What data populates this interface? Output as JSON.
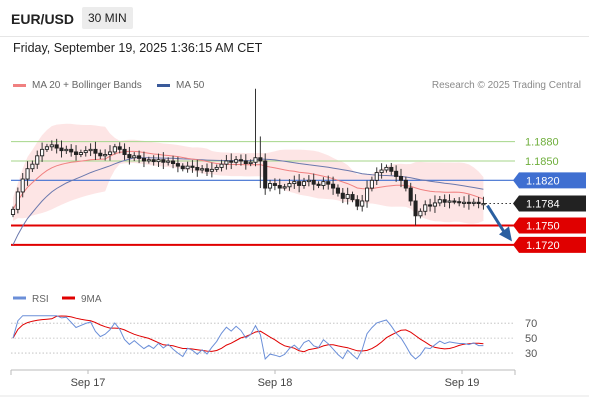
{
  "header": {
    "symbol": "EUR/USD",
    "timeframe": "30 MIN",
    "datetime": "Friday, September 19, 2025 1:36:15 AM CET"
  },
  "legend": {
    "ma20_label": "MA 20 + Bollinger Bands",
    "ma50_label": "MA 50",
    "rsi_label": "RSI",
    "rsi_ma_label": "9MA",
    "credit": "Research © 2025 Trading Central"
  },
  "colors": {
    "ma20": "#f08080",
    "bollinger_fill": "#fde0e0",
    "ma50": "#6a78ad",
    "resistance": "#a4d68a",
    "pivot": "#3f6fd1",
    "support": "#e00000",
    "current_price": "#222222",
    "forecast_arrow": "#2a5fa0",
    "rsi": "#6b8fd8",
    "rsi_ma": "#e00000"
  },
  "chart_data": [
    {
      "type": "candlestick",
      "price_range": [
        1.165,
        1.196
      ],
      "x_ticks": [
        "Sep 17",
        "Sep 18",
        "Sep 19"
      ],
      "current_price": 1.1784,
      "levels": [
        {
          "value": 1.188,
          "label": "1.1880",
          "kind": "resistance"
        },
        {
          "value": 1.185,
          "label": "1.1850",
          "kind": "resistance"
        },
        {
          "value": 1.182,
          "label": "1.1820",
          "kind": "pivot"
        },
        {
          "value": 1.175,
          "label": "1.1750",
          "kind": "support"
        },
        {
          "value": 1.172,
          "label": "1.1720",
          "kind": "support"
        }
      ],
      "forecast": {
        "from": 1.1784,
        "to": 1.173
      },
      "close_series": [
        1.1775,
        1.1802,
        1.1822,
        1.1838,
        1.1845,
        1.1858,
        1.1868,
        1.1872,
        1.1875,
        1.187,
        1.1866,
        1.1868,
        1.1864,
        1.186,
        1.1863,
        1.1866,
        1.1868,
        1.1862,
        1.1858,
        1.186,
        1.1864,
        1.1872,
        1.1868,
        1.186,
        1.1855,
        1.1858,
        1.1854,
        1.185,
        1.1852,
        1.1849,
        1.1852,
        1.1848,
        1.185,
        1.1846,
        1.1842,
        1.1838,
        1.1842,
        1.184,
        1.1836,
        1.1838,
        1.1834,
        1.1837,
        1.184,
        1.1845,
        1.185,
        1.1848,
        1.1852,
        1.185,
        1.1846,
        1.1848,
        1.1855,
        1.185,
        1.1808,
        1.1815,
        1.1812,
        1.1808,
        1.181,
        1.1815,
        1.1818,
        1.1812,
        1.1818,
        1.182,
        1.1814,
        1.1812,
        1.1818,
        1.1814,
        1.1808,
        1.18,
        1.1792,
        1.1798,
        1.179,
        1.178,
        1.1788,
        1.1808,
        1.182,
        1.1832,
        1.1836,
        1.184,
        1.1834,
        1.1826,
        1.182,
        1.1808,
        1.1788,
        1.1765,
        1.1772,
        1.1782,
        1.178,
        1.1785,
        1.179,
        1.1786,
        1.1788,
        1.1787,
        1.1786,
        1.1786,
        1.1785,
        1.1786,
        1.1784,
        1.1784
      ],
      "events": [
        {
          "index": 50,
          "high": 1.1962,
          "low": 1.1846
        },
        {
          "index": 51,
          "high": 1.1888,
          "low": 1.1808
        },
        {
          "index": 83,
          "high": 1.179,
          "low": 1.175
        }
      ]
    },
    {
      "type": "line",
      "title": "RSI",
      "y_ticks": [
        70,
        50,
        30
      ],
      "ylim": [
        10,
        85
      ]
    }
  ]
}
